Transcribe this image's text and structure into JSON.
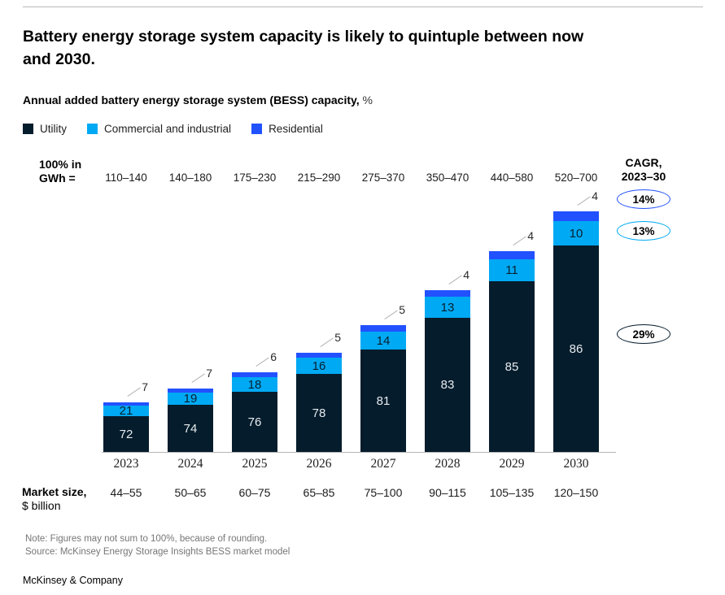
{
  "page": {
    "title": "Battery energy storage system capacity is likely to quintuple between now\nand 2030.",
    "subtitle_bold": "Annual added battery energy storage system (BESS) capacity,",
    "subtitle_unit": "%",
    "note": "Note: Figures may not sum to 100%, because of rounding.",
    "source": "Source: McKinsey Energy Storage Insights BESS market model",
    "brand": "McKinsey & Company"
  },
  "legend": [
    {
      "label": "Utility",
      "color": "#051C2C"
    },
    {
      "label": "Commercial and industrial",
      "color": "#00A9F4"
    },
    {
      "label": "Residential",
      "color": "#2251FF"
    }
  ],
  "gwh_header": {
    "line1": "100% in",
    "line2": "GWh ="
  },
  "market_size_header": {
    "line1": "Market size,",
    "line2": "$ billion"
  },
  "cagr": {
    "header_line1": "CAGR,",
    "header_line2": "2023–30",
    "items": [
      {
        "value": "14%",
        "series": "Residential",
        "border_color": "#2251FF"
      },
      {
        "value": "13%",
        "series": "Commercial and industrial",
        "border_color": "#00A9F4"
      },
      {
        "value": "29%",
        "series": "Utility",
        "border_color": "#051C2C"
      }
    ]
  },
  "chart_data": {
    "type": "bar",
    "stacked": true,
    "value_unit": "%",
    "title": "Annual added battery energy storage system (BESS) capacity, %",
    "categories": [
      "2023",
      "2024",
      "2025",
      "2026",
      "2027",
      "2028",
      "2029",
      "2030"
    ],
    "gwh_ranges": [
      "110–140",
      "140–180",
      "175–230",
      "215–290",
      "275–370",
      "350–470",
      "440–580",
      "520–700"
    ],
    "gwh_midpoints": [
      125,
      160,
      202.5,
      252.5,
      322.5,
      410,
      510,
      610
    ],
    "market_size_billion": [
      "44–55",
      "50–65",
      "60–75",
      "65–85",
      "75–100",
      "90–115",
      "105–135",
      "120–150"
    ],
    "series": [
      {
        "name": "Utility",
        "color": "#051C2C",
        "values": [
          72,
          74,
          76,
          78,
          81,
          83,
          85,
          86
        ]
      },
      {
        "name": "Commercial and industrial",
        "color": "#00A9F4",
        "values": [
          21,
          19,
          18,
          16,
          14,
          13,
          11,
          10
        ]
      },
      {
        "name": "Residential",
        "color": "#2251FF",
        "values": [
          7,
          7,
          6,
          5,
          5,
          4,
          4,
          4
        ]
      }
    ],
    "bar_heights_proportional_to": "GWh range midpoint",
    "legend_position": "top-left",
    "grid": false
  }
}
